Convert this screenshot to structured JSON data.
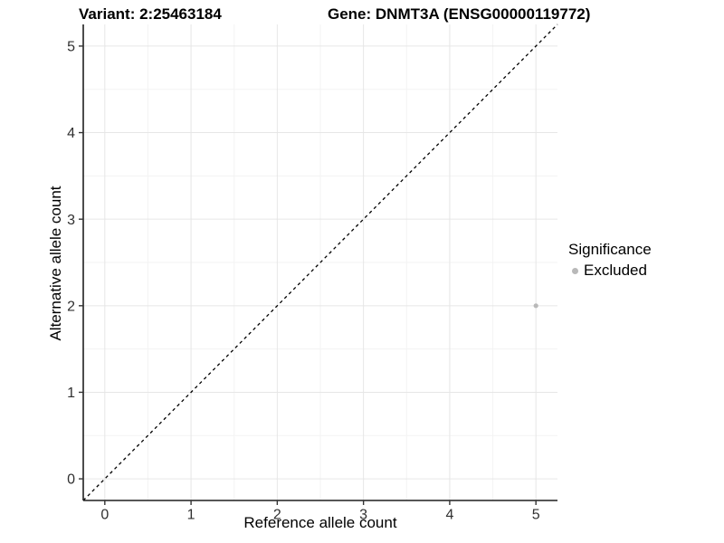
{
  "figure": {
    "title_left": "Variant: 2:25463184",
    "title_right": "Gene: DNMT3A (ENSG00000119772)"
  },
  "chart_data": {
    "type": "scatter",
    "title_left": "Variant: 2:25463184",
    "title_right": "Gene: DNMT3A (ENSG00000119772)",
    "xlabel": "Reference allele count",
    "ylabel": "Alternative allele count",
    "xlim": [
      -0.25,
      5.25
    ],
    "ylim": [
      -0.25,
      5.25
    ],
    "x_ticks": [
      0,
      1,
      2,
      3,
      4,
      5
    ],
    "y_ticks": [
      0,
      1,
      2,
      3,
      4,
      5
    ],
    "grid": {
      "major": true,
      "minor": true,
      "minor_step": 0.5
    },
    "identity_line": {
      "style": "dashed",
      "slope": 1,
      "intercept": 0,
      "from": [
        -0.25,
        -0.25
      ],
      "to": [
        5.25,
        5.25
      ],
      "color": "#000000"
    },
    "series": [
      {
        "name": "Excluded",
        "color": "#b9b9b9",
        "points": [
          {
            "x": 5,
            "y": 2
          }
        ]
      }
    ],
    "legend": {
      "title": "Significance",
      "position": "right",
      "items": [
        {
          "label": "Excluded",
          "color": "#b9b9b9"
        }
      ]
    },
    "colors": {
      "background": "#ffffff",
      "major_grid": "#e6e6e6",
      "minor_grid": "#f3f3f3",
      "axis_line": "#1f1f1f",
      "tick_mark": "#333333",
      "tick_text": "#303030"
    }
  }
}
